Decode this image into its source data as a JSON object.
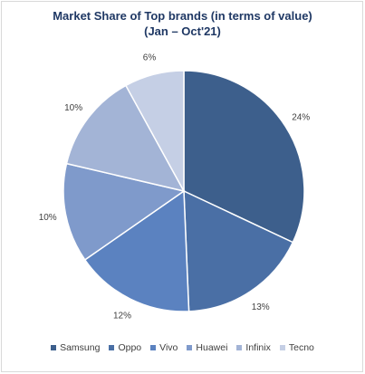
{
  "chart_data": {
    "type": "pie",
    "title": "Market Share of Top brands (in terms of value)",
    "subtitle": "(Jan – Oct'21)",
    "categories": [
      "Samsung",
      "Oppo",
      "Vivo",
      "Huawei",
      "Infinix",
      "Tecno"
    ],
    "values": [
      24,
      13,
      12,
      10,
      10,
      6
    ],
    "labels": [
      "24%",
      "13%",
      "12%",
      "10%",
      "10%",
      "6%"
    ],
    "colors": [
      "#3d5f8c",
      "#4a6fa5",
      "#5b82c0",
      "#7f9acb",
      "#a3b4d6",
      "#c5cfe5"
    ],
    "legend_position": "bottom"
  }
}
